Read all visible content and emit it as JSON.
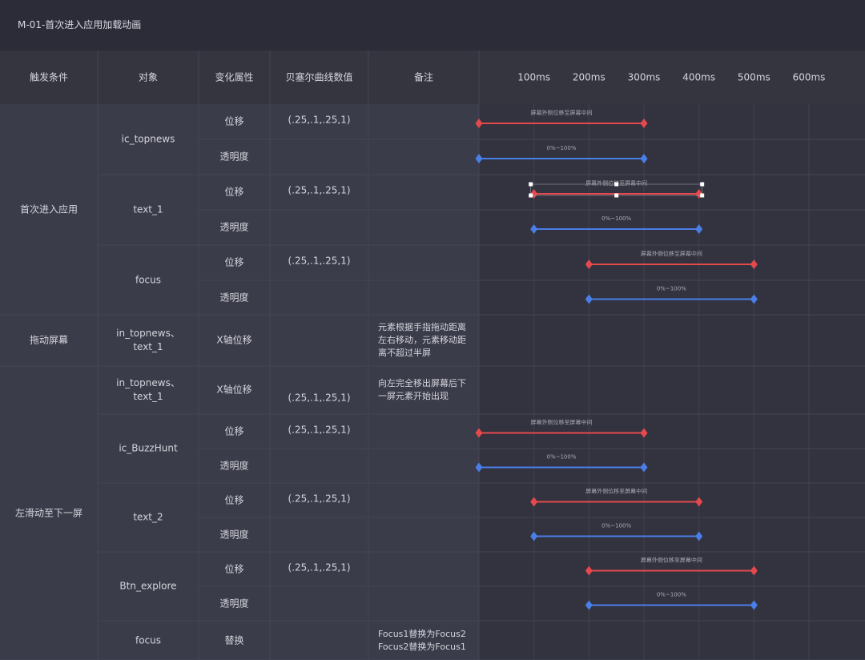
{
  "header": {
    "title": "M-01-首次进入应用加载动画"
  },
  "table": {
    "columns": [
      "触发条件",
      "对象",
      "变化属性",
      "贝塞尔曲线数值",
      "备注"
    ],
    "timeline_ticks": [
      {
        "value": 100,
        "label": "100ms"
      },
      {
        "value": 200,
        "label": "200ms"
      },
      {
        "value": 300,
        "label": "300ms"
      },
      {
        "value": 400,
        "label": "400ms"
      },
      {
        "value": 500,
        "label": "500ms"
      },
      {
        "value": 600,
        "label": "600ms"
      }
    ],
    "groups": [
      {
        "trigger": "首次进入应用",
        "objects": [
          {
            "name": "ic_topnews",
            "bezier": "(.25,.1,.25,1)",
            "properties": [
              {
                "name": "位移",
                "bar": {
                  "start": 0,
                  "end": 300,
                  "label": "屏幕外侧位移至屏幕中间",
                  "color": "#e5484d"
                }
              },
              {
                "name": "透明度",
                "bar": {
                  "start": 0,
                  "end": 300,
                  "label": "0%~100%",
                  "color": "#4a7ee8"
                }
              }
            ]
          },
          {
            "name": "text_1",
            "bezier": "(.25,.1,.25,1)",
            "properties": [
              {
                "name": "位移",
                "bar": {
                  "start": 100,
                  "end": 400,
                  "label": "屏幕外侧位移至屏幕中间",
                  "color": "#e5484d"
                }
              },
              {
                "name": "透明度",
                "bar": {
                  "start": 100,
                  "end": 400,
                  "label": "0%~100%",
                  "color": "#4a7ee8"
                }
              }
            ]
          },
          {
            "name": "focus",
            "bezier": "(.25,.1,.25,1)",
            "properties": [
              {
                "name": "位移",
                "bar": {
                  "start": 200,
                  "end": 500,
                  "label": "屏幕外侧位移至屏幕中间",
                  "color": "#e5484d"
                }
              },
              {
                "name": "透明度",
                "bar": {
                  "start": 200,
                  "end": 500,
                  "label": "0%~100%",
                  "color": "#4a7ee8"
                }
              }
            ]
          }
        ]
      },
      {
        "trigger": "拖动屏幕",
        "objects": [
          {
            "name": "in_topnews、text_1",
            "note": "元素根据手指拖动距离左右移动，元素移动距离不超过半屏",
            "properties": [
              {
                "name": "X轴位移"
              }
            ]
          }
        ]
      },
      {
        "trigger": "左滑动至下一屏",
        "objects": [
          {
            "name": "in_topnews、text_1",
            "bezier": "(.25,.1,.25,1)",
            "note": "向左完全移出屏幕后下一屏元素开始出现",
            "properties": [
              {
                "name": "X轴位移"
              }
            ]
          },
          {
            "name": "ic_BuzzHunt",
            "bezier": "(.25,.1,.25,1)",
            "properties": [
              {
                "name": "位移",
                "bar": {
                  "start": 0,
                  "end": 300,
                  "label": "屏幕外侧位移至屏幕中间",
                  "color": "#e5484d"
                }
              },
              {
                "name": "透明度",
                "bar": {
                  "start": 0,
                  "end": 300,
                  "label": "0%~100%",
                  "color": "#4a7ee8"
                }
              }
            ]
          },
          {
            "name": "text_2",
            "bezier": "(.25,.1,.25,1)",
            "properties": [
              {
                "name": "位移",
                "bar": {
                  "start": 100,
                  "end": 400,
                  "label": "屏幕外侧位移至屏幕中间",
                  "color": "#e5484d"
                }
              },
              {
                "name": "透明度",
                "bar": {
                  "start": 100,
                  "end": 400,
                  "label": "0%~100%",
                  "color": "#4a7ee8"
                }
              }
            ]
          },
          {
            "name": "Btn_explore",
            "bezier": "(.25,.1,.25,1)",
            "properties": [
              {
                "name": "位移",
                "bar": {
                  "start": 200,
                  "end": 500,
                  "label": "屏幕外侧位移至屏幕中间",
                  "color": "#e5484d"
                }
              },
              {
                "name": "透明度",
                "bar": {
                  "start": 200,
                  "end": 500,
                  "label": "0%~100%",
                  "color": "#4a7ee8"
                }
              }
            ]
          },
          {
            "name": "focus",
            "note": "Focus1替换为Focus2 Focus2替换为Focus1",
            "properties": [
              {
                "name": "替换"
              }
            ]
          }
        ]
      }
    ]
  }
}
